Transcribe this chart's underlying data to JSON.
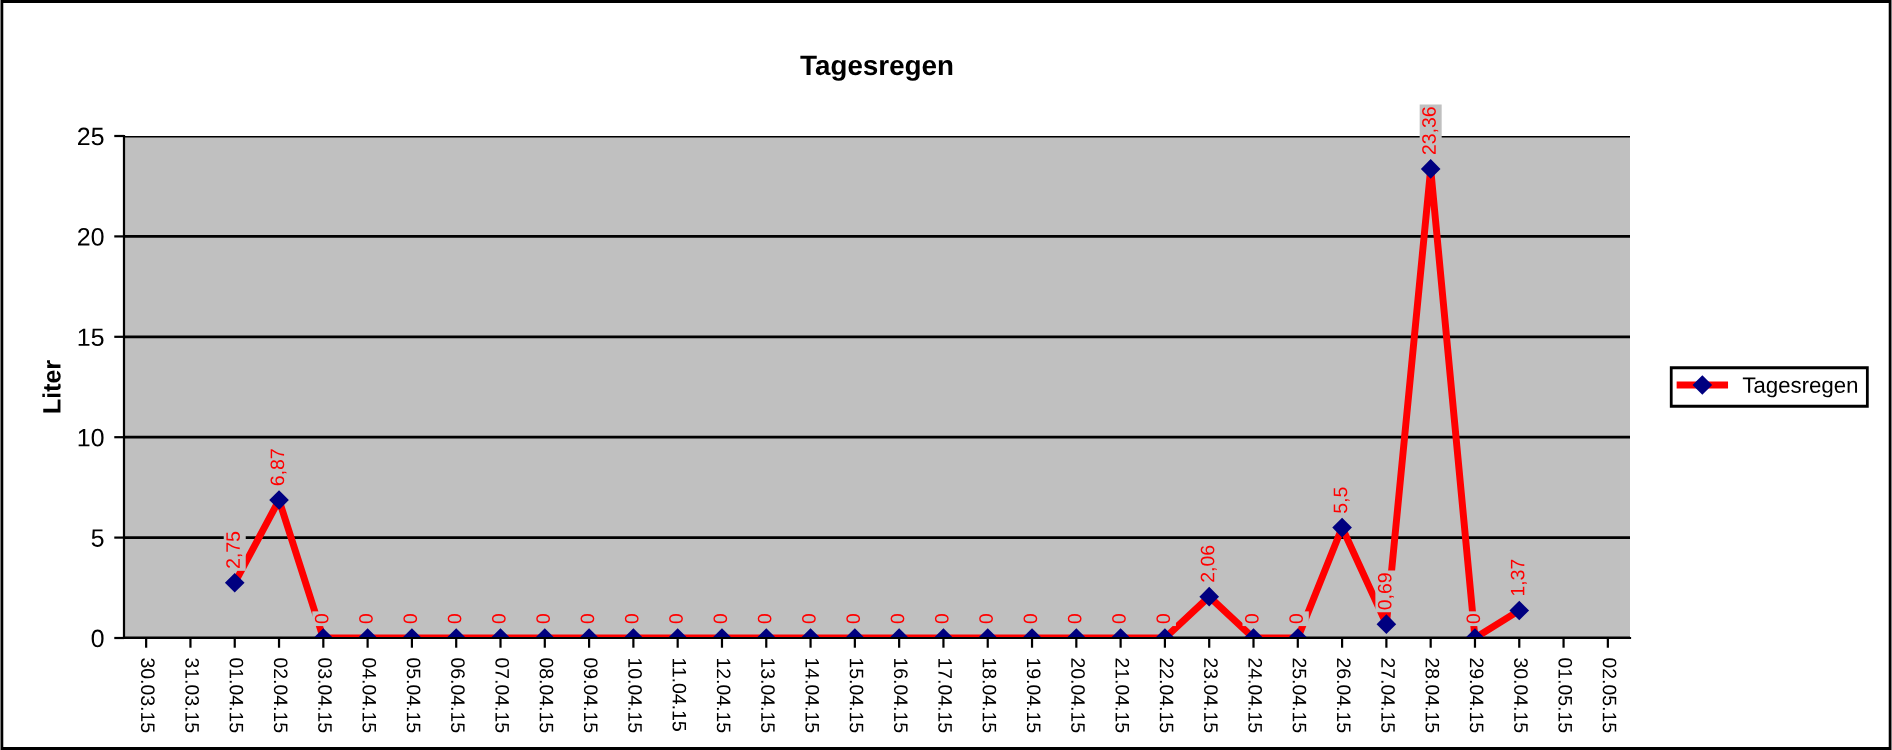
{
  "chart_data": {
    "type": "line",
    "title": "Tagesregen",
    "ylabel": "Liter",
    "categories": [
      "30.03.15",
      "31.03.15",
      "01.04.15",
      "02.04.15",
      "03.04.15",
      "04.04.15",
      "05.04.15",
      "06.04.15",
      "07.04.15",
      "08.04.15",
      "09.04.15",
      "10.04.15",
      "11.04.15",
      "12.04.15",
      "13.04.15",
      "14.04.15",
      "15.04.15",
      "16.04.15",
      "17.04.15",
      "18.04.15",
      "19.04.15",
      "20.04.15",
      "21.04.15",
      "22.04.15",
      "23.04.15",
      "24.04.15",
      "25.04.15",
      "26.04.15",
      "27.04.15",
      "28.04.15",
      "29.04.15",
      "30.04.15",
      "01.05.15",
      "02.05.15"
    ],
    "series": [
      {
        "name": "Tagesregen",
        "color": "#ff0000",
        "values": [
          null,
          null,
          2.75,
          6.87,
          0,
          0,
          0,
          0,
          0,
          0,
          0,
          0,
          0,
          0,
          0,
          0,
          0,
          0,
          0,
          0,
          0,
          0,
          0,
          0,
          2.06,
          0,
          0,
          5.5,
          0.69,
          23.36,
          0,
          1.37,
          null,
          null
        ],
        "value_labels": [
          null,
          null,
          "2,75",
          "6,87",
          "0",
          "0",
          "0",
          "0",
          "0",
          "0",
          "0",
          "0",
          "0",
          "0",
          "0",
          "0",
          "0",
          "0",
          "0",
          "0",
          "0",
          "0",
          "0",
          "0",
          "2,06",
          "0",
          "0",
          "5,5",
          "0,69",
          "23,36",
          "0",
          "1,37",
          null,
          null
        ]
      }
    ],
    "ylim": [
      0,
      25
    ],
    "yticks": [
      0,
      5,
      10,
      15,
      20,
      25
    ],
    "grid": "y",
    "legend": "right",
    "marker": "diamond",
    "line_style": "solid"
  }
}
